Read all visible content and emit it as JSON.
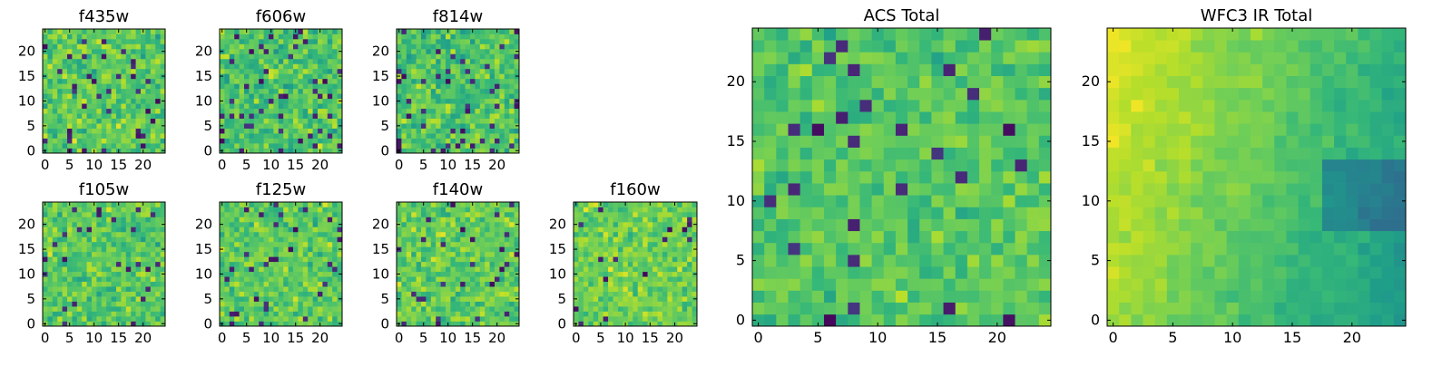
{
  "chart_data": [
    {
      "type": "heatmap",
      "title": "f435w",
      "x_ticks": [
        "0",
        "5",
        "10",
        "15",
        "20"
      ],
      "y_ticks": [
        "0",
        "5",
        "10",
        "15",
        "20"
      ],
      "xlim": [
        -0.5,
        24.5
      ],
      "ylim": [
        -0.5,
        24.5
      ],
      "grid": false,
      "colormap": "viridis",
      "rows": 25,
      "cols": 25,
      "seed": 11,
      "base": 0.74,
      "noise": 0.22,
      "dark_fraction": 0.05
    },
    {
      "type": "heatmap",
      "title": "f606w",
      "x_ticks": [
        "0",
        "5",
        "10",
        "15",
        "20"
      ],
      "y_ticks": [
        "0",
        "5",
        "10",
        "15",
        "20"
      ],
      "xlim": [
        -0.5,
        24.5
      ],
      "ylim": [
        -0.5,
        24.5
      ],
      "grid": false,
      "colormap": "viridis",
      "rows": 25,
      "cols": 25,
      "seed": 23,
      "base": 0.72,
      "noise": 0.22,
      "dark_fraction": 0.07
    },
    {
      "type": "heatmap",
      "title": "f814w",
      "x_ticks": [
        "0",
        "5",
        "10",
        "15",
        "20"
      ],
      "y_ticks": [
        "0",
        "5",
        "10",
        "15",
        "20"
      ],
      "xlim": [
        -0.5,
        24.5
      ],
      "ylim": [
        -0.5,
        24.5
      ],
      "grid": false,
      "colormap": "viridis",
      "rows": 25,
      "cols": 25,
      "seed": 37,
      "base": 0.72,
      "noise": 0.22,
      "dark_fraction": 0.07
    },
    {
      "type": "heatmap",
      "title": "f105w",
      "x_ticks": [
        "0",
        "5",
        "10",
        "15",
        "20"
      ],
      "y_ticks": [
        "0",
        "5",
        "10",
        "15",
        "20"
      ],
      "xlim": [
        -0.5,
        24.5
      ],
      "ylim": [
        -0.5,
        24.5
      ],
      "grid": false,
      "colormap": "viridis",
      "rows": 25,
      "cols": 25,
      "seed": 41,
      "base": 0.74,
      "noise": 0.2,
      "dark_fraction": 0.05
    },
    {
      "type": "heatmap",
      "title": "f125w",
      "x_ticks": [
        "0",
        "5",
        "10",
        "15",
        "20"
      ],
      "y_ticks": [
        "0",
        "5",
        "10",
        "15",
        "20"
      ],
      "xlim": [
        -0.5,
        24.5
      ],
      "ylim": [
        -0.5,
        24.5
      ],
      "grid": false,
      "colormap": "viridis",
      "rows": 25,
      "cols": 25,
      "seed": 53,
      "base": 0.75,
      "noise": 0.2,
      "dark_fraction": 0.04
    },
    {
      "type": "heatmap",
      "title": "f140w",
      "x_ticks": [
        "0",
        "5",
        "10",
        "15",
        "20"
      ],
      "y_ticks": [
        "0",
        "5",
        "10",
        "15",
        "20"
      ],
      "xlim": [
        -0.5,
        24.5
      ],
      "ylim": [
        -0.5,
        24.5
      ],
      "grid": false,
      "colormap": "viridis",
      "rows": 25,
      "cols": 25,
      "seed": 67,
      "base": 0.76,
      "noise": 0.2,
      "dark_fraction": 0.03
    },
    {
      "type": "heatmap",
      "title": "f160w",
      "x_ticks": [
        "0",
        "5",
        "10",
        "15",
        "20"
      ],
      "y_ticks": [
        "0",
        "5",
        "10",
        "15",
        "20"
      ],
      "xlim": [
        -0.5,
        24.5
      ],
      "ylim": [
        -0.5,
        24.5
      ],
      "grid": false,
      "colormap": "viridis",
      "rows": 25,
      "cols": 25,
      "seed": 79,
      "base": 0.78,
      "noise": 0.18,
      "dark_fraction": 0.03
    },
    {
      "type": "heatmap",
      "title": "ACS Total",
      "x_ticks": [
        "0",
        "5",
        "10",
        "15",
        "20"
      ],
      "y_ticks": [
        "0",
        "5",
        "10",
        "15",
        "20"
      ],
      "xlim": [
        -0.5,
        24.5
      ],
      "ylim": [
        -0.5,
        24.5
      ],
      "grid": false,
      "colormap": "viridis",
      "rows": 25,
      "cols": 25,
      "seed": 97,
      "base": 0.73,
      "noise": 0.16,
      "dark_fraction": 0.04
    },
    {
      "type": "heatmap",
      "title": "WFC3 IR Total",
      "x_ticks": [
        "0",
        "5",
        "10",
        "15",
        "20"
      ],
      "y_ticks": [
        "0",
        "5",
        "10",
        "15",
        "20"
      ],
      "xlim": [
        -0.5,
        24.5
      ],
      "ylim": [
        -0.5,
        24.5
      ],
      "grid": false,
      "colormap": "viridis",
      "rows": 25,
      "cols": 25,
      "seed": 131,
      "base": 0.72,
      "noise": 0.08,
      "dark_fraction": 0.0,
      "structure": "ir"
    }
  ]
}
